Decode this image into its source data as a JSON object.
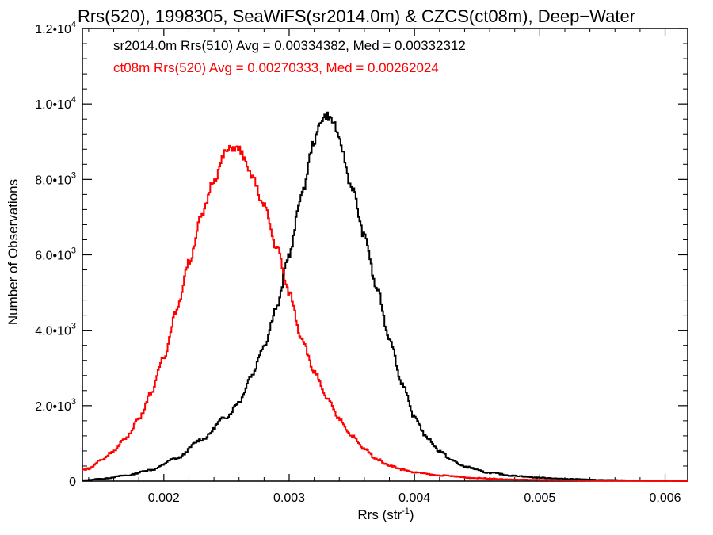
{
  "chart_data": {
    "type": "line",
    "title": "Rrs(520), 1998305, SeaWiFS(sr2014.0m) & CZCS(ct08m), Deep−Water",
    "xlabel": "Rrs (str",
    "xlabel_sup": "-1",
    "xlabel_close": ")",
    "ylabel": "Number of Observations",
    "xlim": [
      0.00135,
      0.00618
    ],
    "ylim": [
      0,
      12000
    ],
    "x_ticks": [
      {
        "value": 0.002,
        "label": "0.002"
      },
      {
        "value": 0.003,
        "label": "0.003"
      },
      {
        "value": 0.004,
        "label": "0.004"
      },
      {
        "value": 0.005,
        "label": "0.005"
      },
      {
        "value": 0.006,
        "label": "0.006"
      }
    ],
    "y_ticks": [
      {
        "value": 0,
        "mant": "0",
        "exp": ""
      },
      {
        "value": 2000,
        "mant": "2.0•10",
        "exp": "3"
      },
      {
        "value": 4000,
        "mant": "4.0•10",
        "exp": "3"
      },
      {
        "value": 6000,
        "mant": "6.0•10",
        "exp": "3"
      },
      {
        "value": 8000,
        "mant": "8.0•10",
        "exp": "3"
      },
      {
        "value": 10000,
        "mant": "1.0•10",
        "exp": "4"
      },
      {
        "value": 12000,
        "mant": "1.2•10",
        "exp": "4"
      }
    ],
    "grid": false,
    "series": [
      {
        "name": "sr2014.0m Rrs(510) Avg = 0.00334382, Med = 0.00332312",
        "color": "#000000",
        "points": [
          [
            0.00135,
            20
          ],
          [
            0.0015,
            60
          ],
          [
            0.0017,
            150
          ],
          [
            0.0019,
            300
          ],
          [
            0.0021,
            600
          ],
          [
            0.0023,
            1100
          ],
          [
            0.0025,
            1700
          ],
          [
            0.0026,
            2100
          ],
          [
            0.0027,
            2800
          ],
          [
            0.0028,
            3600
          ],
          [
            0.0029,
            4600
          ],
          [
            0.003,
            6000
          ],
          [
            0.0031,
            7600
          ],
          [
            0.0032,
            9000
          ],
          [
            0.00326,
            9600
          ],
          [
            0.0033,
            9700
          ],
          [
            0.00336,
            9500
          ],
          [
            0.0034,
            9000
          ],
          [
            0.0035,
            7800
          ],
          [
            0.0036,
            6500
          ],
          [
            0.0037,
            5100
          ],
          [
            0.0038,
            3800
          ],
          [
            0.0039,
            2600
          ],
          [
            0.004,
            1700
          ],
          [
            0.0041,
            1150
          ],
          [
            0.0042,
            800
          ],
          [
            0.0043,
            550
          ],
          [
            0.0044,
            380
          ],
          [
            0.0046,
            220
          ],
          [
            0.0048,
            140
          ],
          [
            0.005,
            90
          ],
          [
            0.0052,
            60
          ],
          [
            0.0055,
            30
          ],
          [
            0.0058,
            15
          ],
          [
            0.00618,
            8
          ]
        ]
      },
      {
        "name": "ct08m Rrs(520) Avg = 0.00270333, Med = 0.00262024",
        "color": "#ff0000",
        "points": [
          [
            0.00135,
            300
          ],
          [
            0.0014,
            330
          ],
          [
            0.0015,
            560
          ],
          [
            0.0016,
            800
          ],
          [
            0.0017,
            1150
          ],
          [
            0.0018,
            1650
          ],
          [
            0.0019,
            2350
          ],
          [
            0.002,
            3300
          ],
          [
            0.0021,
            4500
          ],
          [
            0.0022,
            5800
          ],
          [
            0.0023,
            7000
          ],
          [
            0.0024,
            8000
          ],
          [
            0.0025,
            8750
          ],
          [
            0.00255,
            8850
          ],
          [
            0.0026,
            8800
          ],
          [
            0.0027,
            8100
          ],
          [
            0.0028,
            7300
          ],
          [
            0.0029,
            6200
          ],
          [
            0.003,
            5000
          ],
          [
            0.0031,
            3800
          ],
          [
            0.0032,
            2900
          ],
          [
            0.0033,
            2200
          ],
          [
            0.0034,
            1650
          ],
          [
            0.0035,
            1200
          ],
          [
            0.0036,
            850
          ],
          [
            0.0037,
            580
          ],
          [
            0.0038,
            420
          ],
          [
            0.0039,
            310
          ],
          [
            0.004,
            230
          ],
          [
            0.0042,
            150
          ],
          [
            0.0045,
            80
          ],
          [
            0.0048,
            40
          ],
          [
            0.0052,
            20
          ],
          [
            0.0056,
            8
          ],
          [
            0.00618,
            3
          ]
        ]
      }
    ]
  }
}
